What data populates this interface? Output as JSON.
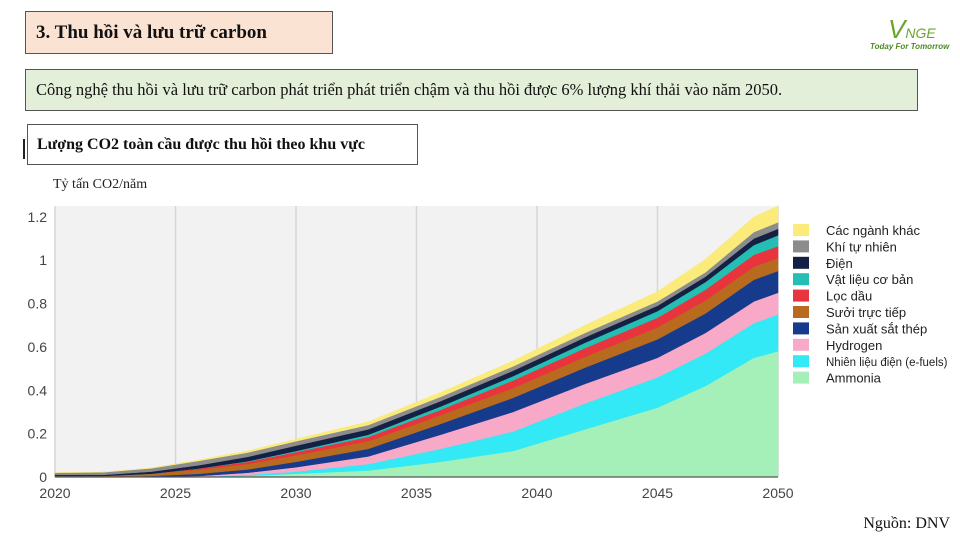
{
  "slide": {
    "title": "3. Thu hồi và lưu trữ carbon",
    "summary": "Công nghệ thu hồi và lưu trữ carbon phát triển phát triển chậm và thu hồi được 6% lượng khí thải vào năm 2050.",
    "chart_title": "Lượng CO2 toàn cầu được thu hồi theo khu vực",
    "source": "Nguồn: DNV"
  },
  "logo": {
    "mark_v": "V",
    "mark_rest": "NGE",
    "tagline": "Today For Tomorrow",
    "color": "#6aa52c"
  },
  "chart_data": {
    "type": "area",
    "stacked": true,
    "title": "",
    "ylabel": "Tỷ tấn CO2/năm",
    "xlabel": "",
    "xlim": [
      2020,
      2050
    ],
    "ylim": [
      0,
      1.25
    ],
    "x_ticks": [
      2020,
      2025,
      2030,
      2035,
      2040,
      2045,
      2050
    ],
    "y_ticks": [
      0,
      0.2,
      0.4,
      0.6,
      0.8,
      1,
      1.2
    ],
    "y_tick_labels": [
      "0",
      "0.2",
      "0.4",
      "0.6",
      "0.8",
      "1",
      "1.2"
    ],
    "grid": "vertical",
    "legend_position": "right",
    "x": [
      2020,
      2022,
      2024,
      2026,
      2028,
      2030,
      2033,
      2036,
      2039,
      2042,
      2045,
      2047,
      2049,
      2050
    ],
    "series": [
      {
        "name": "Ammonia",
        "color": "#a5f0b8",
        "values": [
          0,
          0,
          0,
          0,
          0.005,
          0.015,
          0.03,
          0.07,
          0.12,
          0.22,
          0.32,
          0.42,
          0.55,
          0.58
        ]
      },
      {
        "name": "Nhiên liệu điện (e-fuels)",
        "color": "#33e9f6",
        "values": [
          0,
          0,
          0,
          0,
          0.005,
          0.01,
          0.03,
          0.06,
          0.09,
          0.12,
          0.14,
          0.15,
          0.16,
          0.17
        ]
      },
      {
        "name": "Hydrogen",
        "color": "#f8a9c8",
        "values": [
          0,
          0,
          0,
          0.005,
          0.01,
          0.02,
          0.035,
          0.065,
          0.09,
          0.09,
          0.09,
          0.095,
          0.1,
          0.1
        ]
      },
      {
        "name": "Sản xuất sắt thép",
        "color": "#163a8c",
        "values": [
          0,
          0,
          0.005,
          0.01,
          0.015,
          0.025,
          0.035,
          0.05,
          0.065,
          0.075,
          0.085,
          0.09,
          0.1,
          0.1
        ]
      },
      {
        "name": "Sưởi trực tiếp",
        "color": "#b86b1e",
        "values": [
          0.005,
          0.005,
          0.01,
          0.02,
          0.025,
          0.03,
          0.035,
          0.04,
          0.045,
          0.05,
          0.055,
          0.06,
          0.06,
          0.06
        ]
      },
      {
        "name": "Lọc dầu",
        "color": "#e8343c",
        "values": [
          0,
          0,
          0,
          0.005,
          0.01,
          0.015,
          0.02,
          0.025,
          0.035,
          0.04,
          0.045,
          0.05,
          0.055,
          0.055
        ]
      },
      {
        "name": "Vật liệu cơ bản",
        "color": "#22bfb2",
        "values": [
          0,
          0,
          0,
          0,
          0.003,
          0.005,
          0.01,
          0.015,
          0.02,
          0.025,
          0.03,
          0.035,
          0.045,
          0.05
        ]
      },
      {
        "name": "Điện",
        "color": "#142044",
        "values": [
          0.005,
          0.005,
          0.01,
          0.015,
          0.02,
          0.025,
          0.025,
          0.025,
          0.025,
          0.025,
          0.025,
          0.025,
          0.03,
          0.03
        ]
      },
      {
        "name": "Khí tự nhiên",
        "color": "#8c8c8c",
        "values": [
          0.01,
          0.012,
          0.015,
          0.02,
          0.02,
          0.02,
          0.02,
          0.02,
          0.02,
          0.02,
          0.02,
          0.02,
          0.03,
          0.03
        ]
      },
      {
        "name": "Các ngành khác",
        "color": "#fbeb7a",
        "values": [
          0,
          0,
          0.002,
          0.005,
          0.008,
          0.01,
          0.015,
          0.02,
          0.025,
          0.035,
          0.045,
          0.06,
          0.07,
          0.075
        ]
      }
    ]
  }
}
